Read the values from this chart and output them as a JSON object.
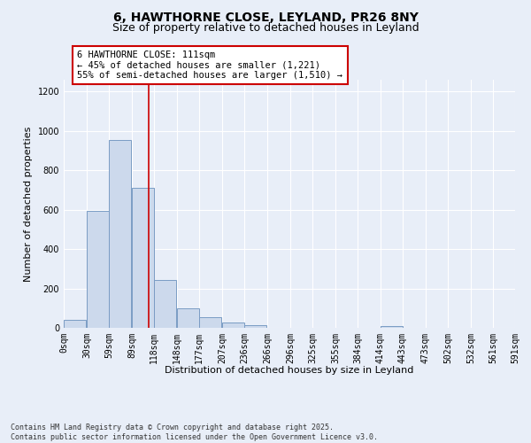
{
  "title_line1": "6, HAWTHORNE CLOSE, LEYLAND, PR26 8NY",
  "title_line2": "Size of property relative to detached houses in Leyland",
  "xlabel": "Distribution of detached houses by size in Leyland",
  "ylabel": "Number of detached properties",
  "bar_color": "#ccd9ec",
  "bar_edge_color": "#7a9cc4",
  "background_color": "#e8eef8",
  "grid_color": "#ffffff",
  "vline_x": 111,
  "vline_color": "#cc0000",
  "annotation_text": "6 HAWTHORNE CLOSE: 111sqm\n← 45% of detached houses are smaller (1,221)\n55% of semi-detached houses are larger (1,510) →",
  "annotation_box_color": "white",
  "annotation_box_edge": "#cc0000",
  "bins_left": [
    0,
    30,
    59,
    89,
    118,
    148,
    177,
    207,
    236,
    266,
    296,
    325,
    355,
    384,
    414,
    443,
    473,
    502,
    532,
    561
  ],
  "bin_width": 29,
  "bar_heights": [
    40,
    595,
    955,
    710,
    245,
    100,
    55,
    25,
    15,
    0,
    0,
    0,
    0,
    0,
    10,
    0,
    0,
    0,
    0,
    0
  ],
  "tick_labels": [
    "0sqm",
    "30sqm",
    "59sqm",
    "89sqm",
    "118sqm",
    "148sqm",
    "177sqm",
    "207sqm",
    "236sqm",
    "266sqm",
    "296sqm",
    "325sqm",
    "355sqm",
    "384sqm",
    "414sqm",
    "443sqm",
    "473sqm",
    "502sqm",
    "532sqm",
    "561sqm",
    "591sqm"
  ],
  "ylim": [
    0,
    1260
  ],
  "yticks": [
    0,
    200,
    400,
    600,
    800,
    1000,
    1200
  ],
  "xlim_max": 591,
  "footer_text": "Contains HM Land Registry data © Crown copyright and database right 2025.\nContains public sector information licensed under the Open Government Licence v3.0.",
  "title_fontsize": 10,
  "subtitle_fontsize": 9,
  "tick_fontsize": 7,
  "label_fontsize": 8,
  "annotation_fontsize": 7.5
}
